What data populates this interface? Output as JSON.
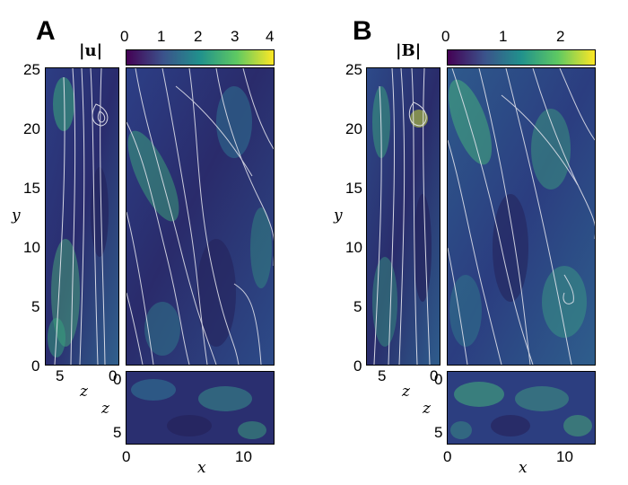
{
  "panels": [
    {
      "letter": "A",
      "colorbar_label": "|u|",
      "colorbar_ticks": [
        "0",
        "1",
        "2",
        "3",
        "4"
      ],
      "y_ticks": [
        "25",
        "20",
        "15",
        "10",
        "5",
        "0"
      ],
      "y_label": "y",
      "z_side_ticks": [
        "5",
        "0"
      ],
      "z_side_label": "z",
      "z_bottom_ticks": [
        "0",
        "5"
      ],
      "z_bottom_label": "z",
      "x_ticks": [
        "0",
        "10"
      ],
      "x_label": "x",
      "colorbar_range": [
        0,
        4
      ],
      "y_range": [
        0,
        25
      ]
    },
    {
      "letter": "B",
      "colorbar_label": "|B|",
      "colorbar_ticks": [
        "0",
        "1",
        "2"
      ],
      "y_ticks": [
        "25",
        "20",
        "15",
        "10",
        "5",
        "0"
      ],
      "y_label": "y",
      "z_side_ticks": [
        "5",
        "0"
      ],
      "z_side_label": "z",
      "z_bottom_ticks": [
        "0",
        "5"
      ],
      "z_bottom_label": "z",
      "x_ticks": [
        "0",
        "10"
      ],
      "x_label": "x",
      "colorbar_range": [
        0,
        2.6
      ],
      "y_range": [
        0,
        25
      ]
    }
  ],
  "colormap": "viridis",
  "colors": {
    "field_dark": "#2b1d58",
    "field_mid": "#2d4f8c",
    "field_bright": "#3dbb78",
    "streamline": "#e8e8f0"
  }
}
